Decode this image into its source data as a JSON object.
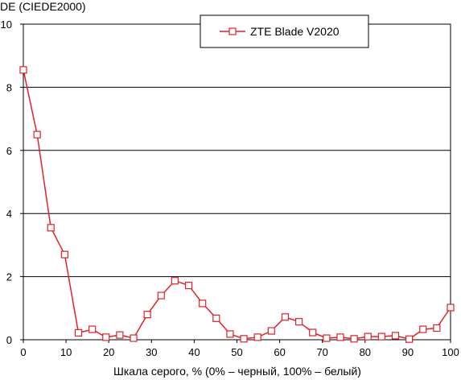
{
  "chart_data": {
    "type": "line",
    "ylabel": "DE (CIEDE2000)",
    "xlabel": "Шкала серого, % (0% – черный, 100% – белый)",
    "xlim": [
      0,
      100
    ],
    "ylim": [
      0,
      10
    ],
    "x_ticks": [
      "0",
      "10",
      "20",
      "30",
      "40",
      "50",
      "60",
      "70",
      "80",
      "90",
      "100"
    ],
    "y_ticks": [
      "0",
      "2",
      "4",
      "6",
      "8",
      "10"
    ],
    "grid": "horizontal",
    "legend_position": "top-right",
    "series": [
      {
        "name": "ZTE Blade V2020",
        "color": "#e0202a",
        "marker": "square",
        "x": [
          0,
          3.23,
          6.45,
          9.68,
          12.9,
          16.13,
          19.35,
          22.58,
          25.81,
          29.03,
          32.26,
          35.48,
          38.71,
          41.94,
          45.16,
          48.39,
          51.61,
          54.84,
          58.06,
          61.29,
          64.52,
          67.74,
          70.97,
          74.19,
          77.42,
          80.65,
          83.87,
          87.1,
          90.32,
          93.55,
          96.77,
          100
        ],
        "y": [
          8.55,
          6.5,
          3.55,
          2.7,
          0.22,
          0.33,
          0.08,
          0.15,
          0.05,
          0.8,
          1.4,
          1.87,
          1.72,
          1.15,
          0.68,
          0.18,
          0.03,
          0.08,
          0.28,
          0.72,
          0.57,
          0.23,
          0.05,
          0.08,
          0.03,
          0.1,
          0.1,
          0.13,
          0.02,
          0.33,
          0.37,
          1.02
        ]
      }
    ]
  }
}
